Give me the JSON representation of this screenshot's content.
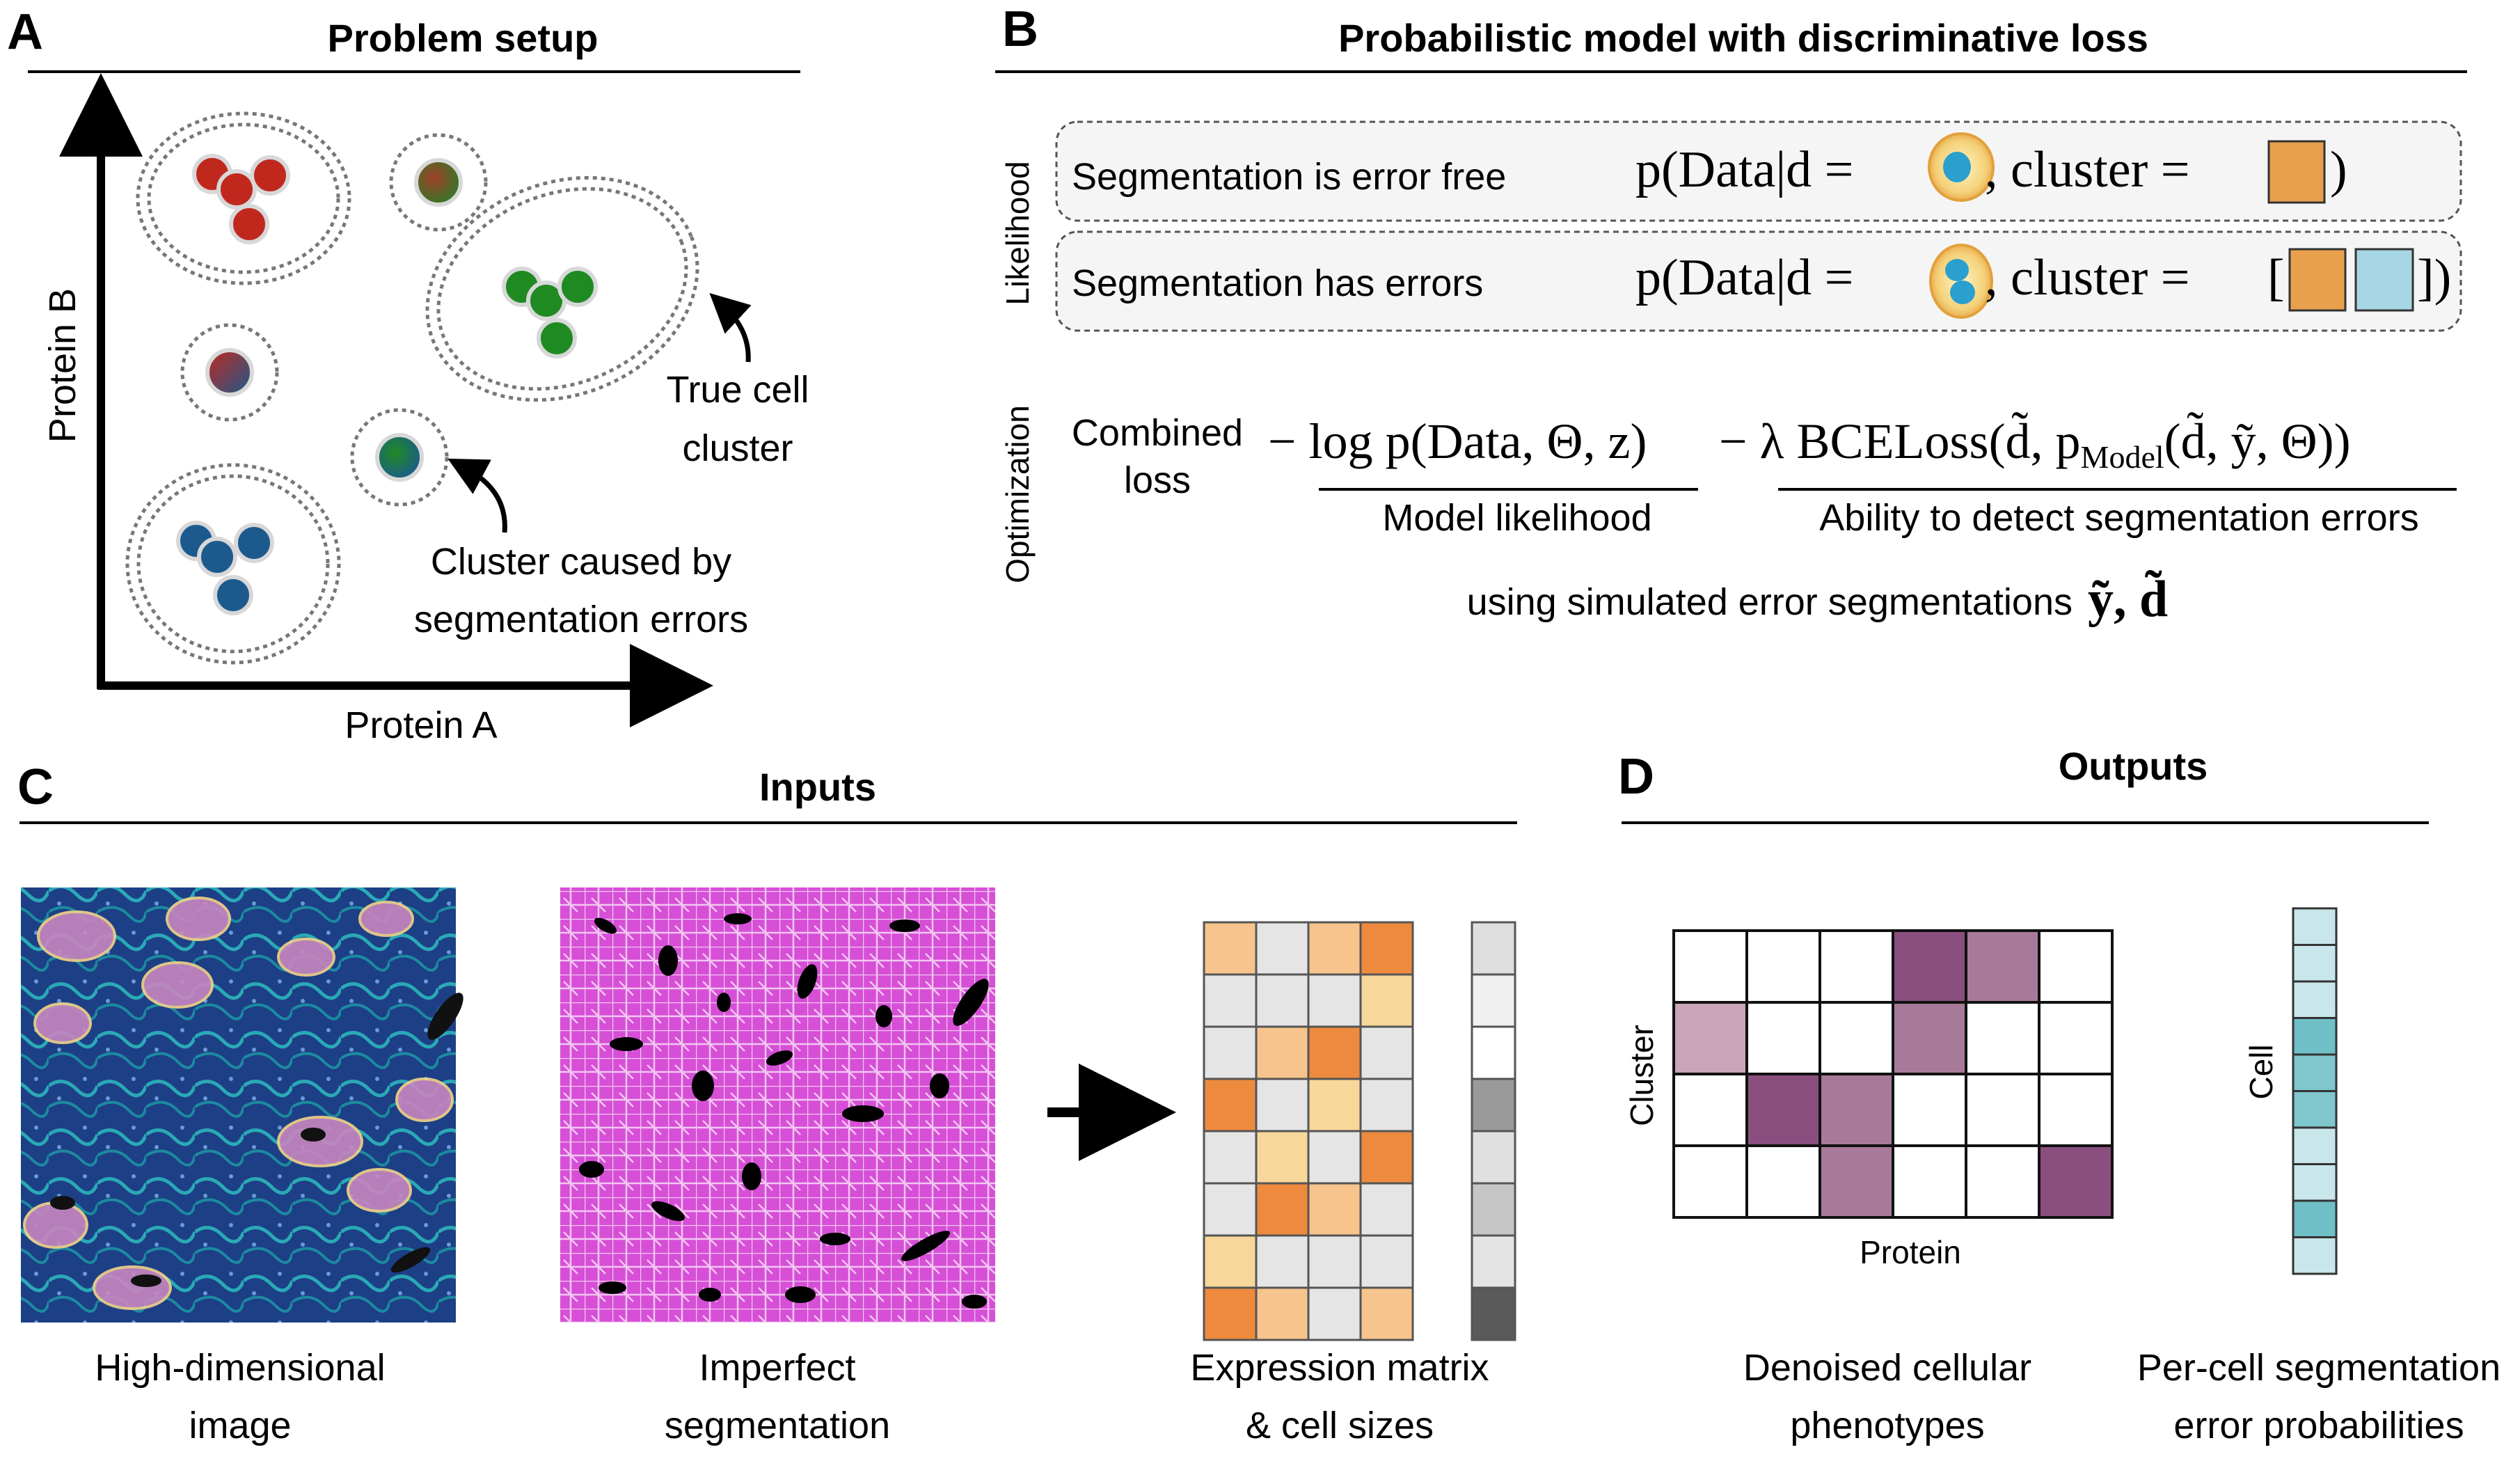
{
  "panel_a": {
    "letter": "A",
    "title": "Problem setup",
    "y_axis_label": "Protein B",
    "x_axis_label": "Protein A",
    "annotation_true_line1": "True cell",
    "annotation_true_line2": "cluster",
    "annotation_err_line1": "Cluster caused by",
    "annotation_err_line2": "segmentation errors",
    "colors": {
      "red": "#c0281e",
      "green": "#1f8a22",
      "blue": "#1c5a8e"
    }
  },
  "panel_b": {
    "letter": "B",
    "title": "Probabilistic model with discriminative loss",
    "likelihood_label": "Likelihood",
    "optimization_label": "Optimization",
    "row1_text": "Segmentation is error free",
    "row2_text": "Segmentation has errors",
    "formula_p": "p(Data|d =",
    "formula_cluster": ",  cluster =",
    "combined_loss_line1": "Combined",
    "combined_loss_line2": "loss",
    "term1": "− log p(Data, Θ, z)",
    "term2": "− λ BCELoss(d̃, p",
    "term2_sub": "Model",
    "term2_end": "(d̃, ỹ, Θ))",
    "term1_caption": "Model likelihood",
    "term2_caption": "Ability to detect segmentation errors",
    "simulated_text": "using simulated error segmentations",
    "simulated_vars": "ỹ, d̃",
    "colors": {
      "orange": "#e8a04c",
      "light_blue": "#a7d6e4"
    }
  },
  "panel_c": {
    "letter": "C",
    "title": "Inputs",
    "img1_line1": "High-dimensional",
    "img1_line2": "image",
    "img2_line1": "Imperfect",
    "img2_line2": "segmentation",
    "img3_line1": "Expression matrix",
    "img3_line2": "& cell sizes",
    "expression_matrix": [
      [
        "#f6c48c",
        "#e5e5e5",
        "#f6c48c",
        "#ee8a3e"
      ],
      [
        "#e5e5e5",
        "#e5e5e5",
        "#e5e5e5",
        "#f8d79a"
      ],
      [
        "#e5e5e5",
        "#f6c48c",
        "#ee8a3e",
        "#e5e5e5"
      ],
      [
        "#ee8a3e",
        "#e5e5e5",
        "#f8d79a",
        "#e5e5e5"
      ],
      [
        "#e5e5e5",
        "#f8d79a",
        "#e5e5e5",
        "#ee8a3e"
      ],
      [
        "#e5e5e5",
        "#ee8a3e",
        "#f6c48c",
        "#e5e5e5"
      ],
      [
        "#f8d79a",
        "#e5e5e5",
        "#e5e5e5",
        "#e5e5e5"
      ],
      [
        "#ee8a3e",
        "#f6c48c",
        "#e5e5e5",
        "#f6c48c"
      ]
    ],
    "cell_sizes": [
      "#dedede",
      "#f0f0f0",
      "#ffffff",
      "#9a9a9a",
      "#e0e0e0",
      "#c6c6c6",
      "#e4e4e4",
      "#5a5a5a"
    ]
  },
  "panel_d": {
    "letter": "D",
    "title": "Outputs",
    "cluster_label": "Cluster",
    "protein_label": "Protein",
    "cell_label": "Cell",
    "caption1_line1": "Denoised cellular",
    "caption1_line2": "phenotypes",
    "caption2_line1": "Per-cell segmentation",
    "caption2_line2": "error probabilities",
    "phenotype_matrix": [
      [
        "#ffffff",
        "#ffffff",
        "#ffffff",
        "#8a4f7f",
        "#a87a99",
        "#ffffff"
      ],
      [
        "#c9a5b8",
        "#ffffff",
        "#ffffff",
        "#a87a99",
        "#ffffff",
        "#ffffff"
      ],
      [
        "#ffffff",
        "#8a4f7f",
        "#a87a99",
        "#ffffff",
        "#ffffff",
        "#ffffff"
      ],
      [
        "#ffffff",
        "#ffffff",
        "#a87a99",
        "#ffffff",
        "#ffffff",
        "#8a4f7f"
      ]
    ],
    "error_probs": [
      "#c9e6ea",
      "#c9e6ea",
      "#c9e6ea",
      "#6fbfc6",
      "#7fc6cd",
      "#7fc6cd",
      "#c9e6ea",
      "#c9e6ea",
      "#6fbfc6",
      "#c9e6ea"
    ]
  }
}
